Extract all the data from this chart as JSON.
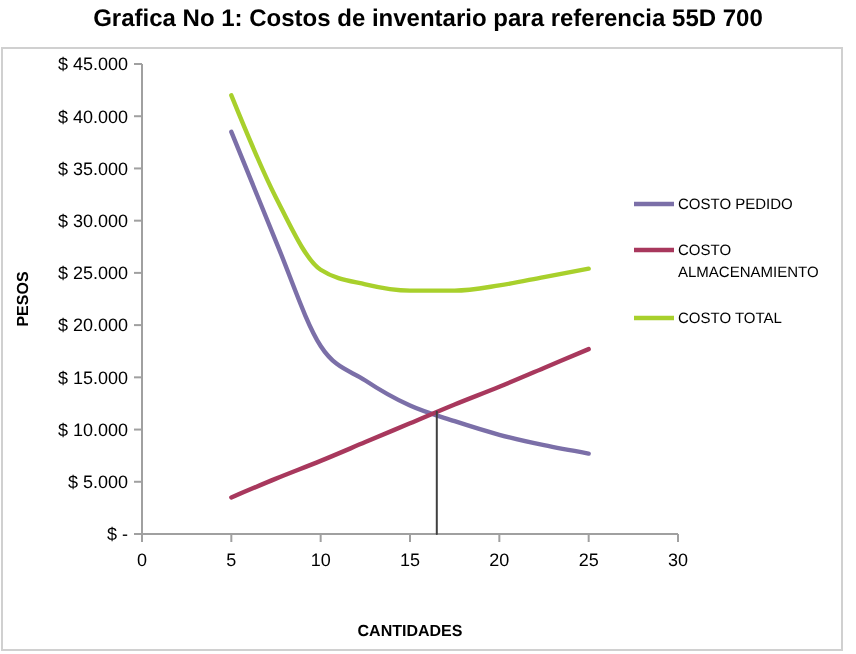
{
  "chart_data": {
    "type": "line",
    "title": "Grafica No 1: Costos de inventario para referencia 55D 700",
    "xlabel": "CANTIDADES",
    "ylabel": "PESOS",
    "x": [
      5,
      7.5,
      10,
      12.5,
      15,
      17.5,
      20,
      22.5,
      25
    ],
    "series": [
      {
        "name": "COSTO PEDIDO",
        "color": "#7b6fa8",
        "values": [
          38500,
          28000,
          18000,
          14700,
          12300,
          10800,
          9500,
          8500,
          7700
        ]
      },
      {
        "name": "COSTO ALMACENAMIENTO",
        "color": "#a8385d",
        "values": [
          3500,
          5300,
          7000,
          8800,
          10600,
          12400,
          14100,
          15900,
          17700
        ]
      },
      {
        "name": "COSTO TOTAL",
        "color": "#a8d02c",
        "values": [
          42000,
          32200,
          25300,
          23900,
          23300,
          23300,
          23800,
          24600,
          25400
        ]
      },
      {
        "type": "line",
        "color": "#404040",
        "x": [
          16.5,
          16.5
        ],
        "values": [
          11700,
          0
        ]
      }
    ],
    "xlim": [
      0,
      30
    ],
    "xticks": [
      0,
      5,
      10,
      15,
      20,
      25,
      30
    ],
    "ylim": [
      0,
      45000
    ],
    "yticks": [
      {
        "value": 0,
        "label": "$ -"
      },
      {
        "value": 5000,
        "label": "$ 5.000"
      },
      {
        "value": 10000,
        "label": "$ 10.000"
      },
      {
        "value": 15000,
        "label": "$ 15.000"
      },
      {
        "value": 20000,
        "label": "$ 20.000"
      },
      {
        "value": 25000,
        "label": "$ 25.000"
      },
      {
        "value": 30000,
        "label": "$ 30.000"
      },
      {
        "value": 35000,
        "label": "$ 35.000"
      },
      {
        "value": 40000,
        "label": "$ 40.000"
      },
      {
        "value": 45000,
        "label": "$ 45.000"
      }
    ],
    "grid": false,
    "legend": "right",
    "marker": "none",
    "line_style": "solid"
  }
}
